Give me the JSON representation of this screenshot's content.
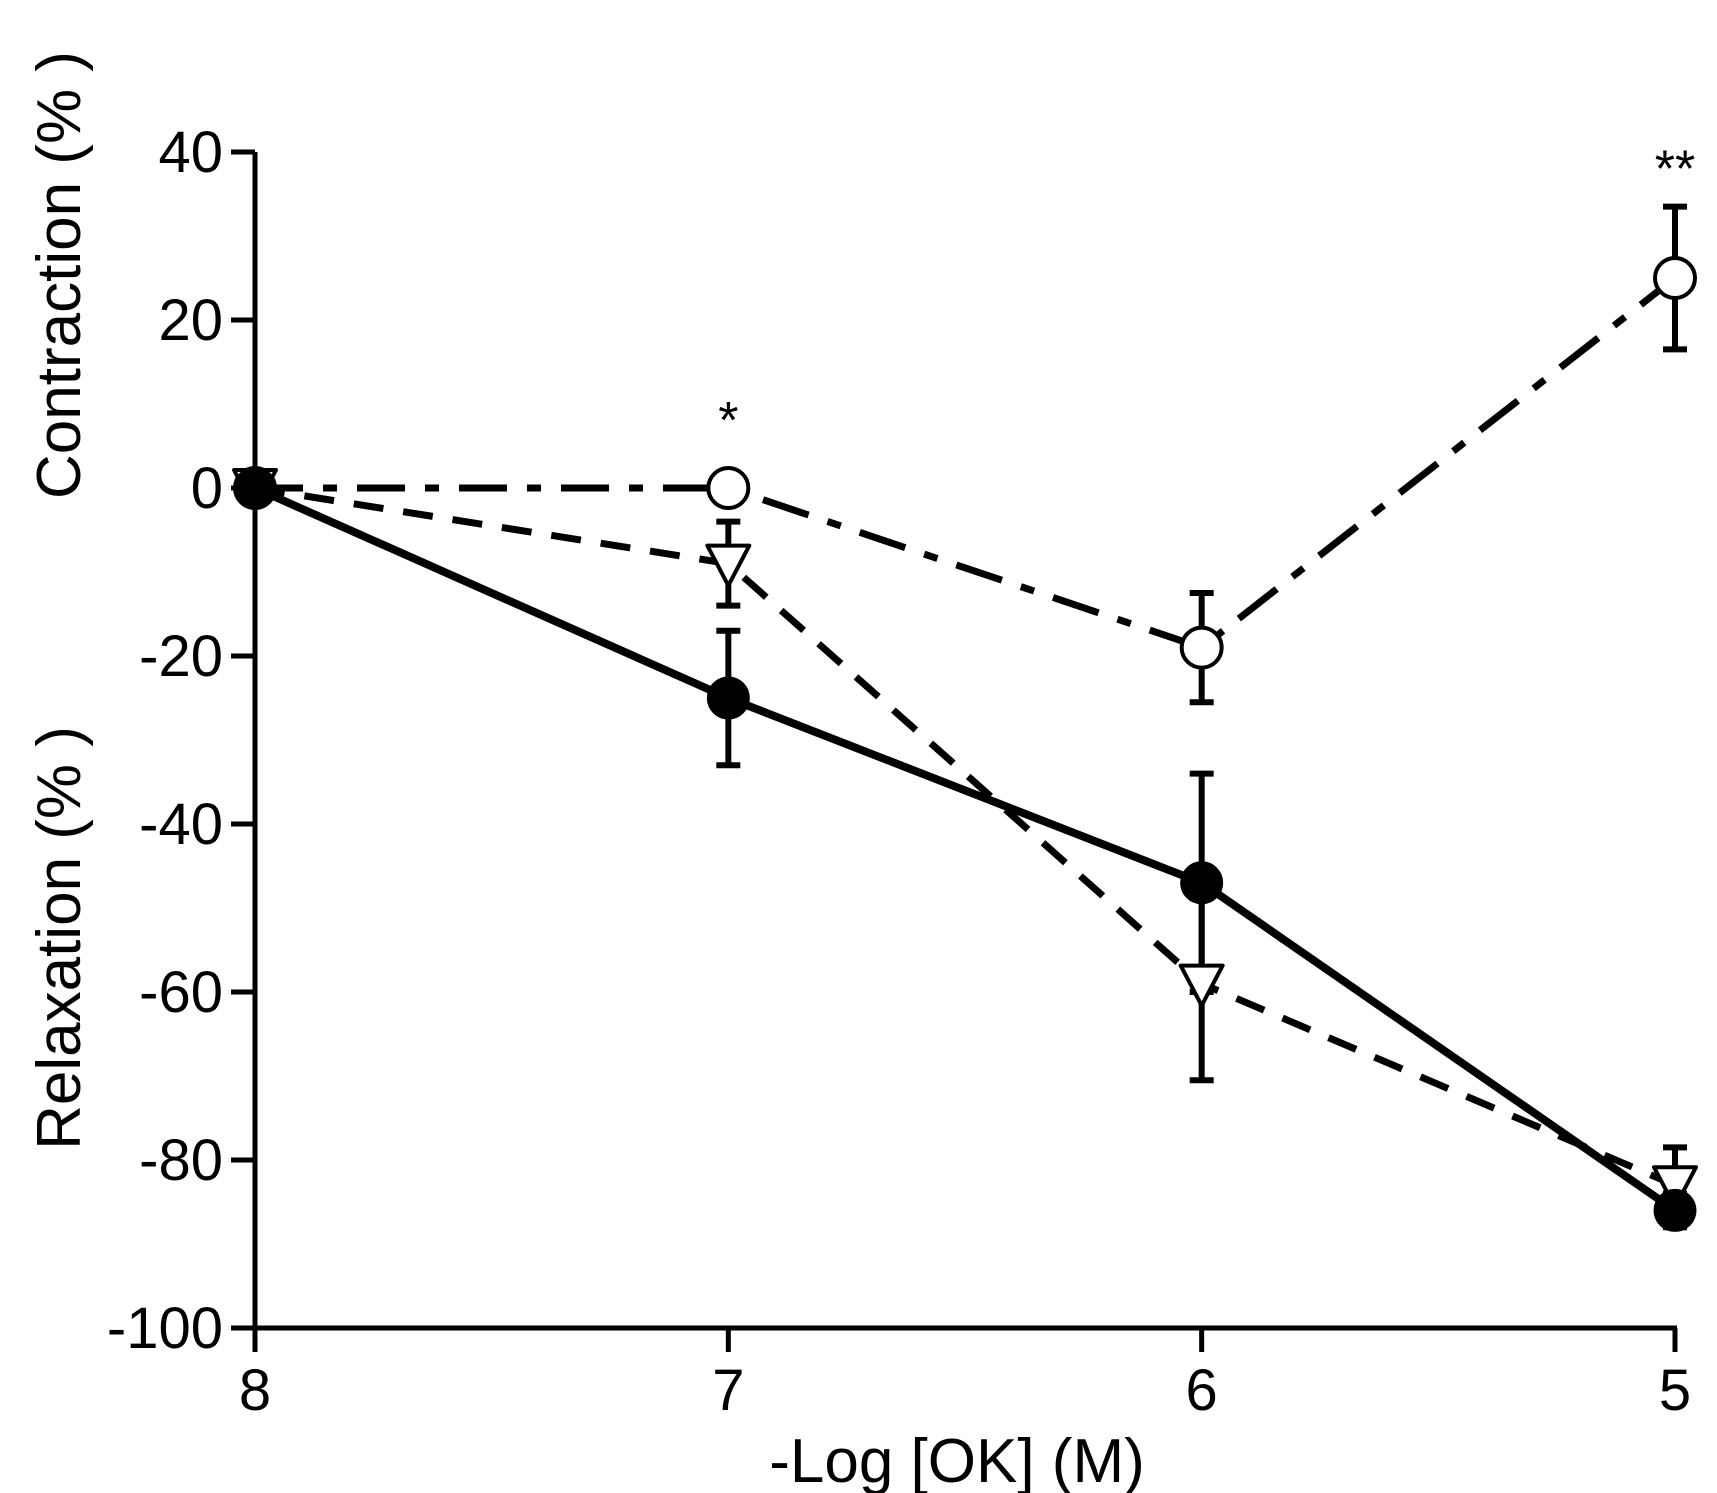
{
  "chart_data": {
    "type": "line",
    "title": "",
    "xlabel": "-Log [OK] (M)",
    "ylabel_top": "Contraction (% )",
    "ylabel_bottom": "Relaxation (% )",
    "x": [
      8,
      7,
      6,
      5
    ],
    "xticks": [
      8,
      7,
      6,
      5
    ],
    "xtick_labels": [
      "8",
      "7",
      "6",
      "5"
    ],
    "xlim": [
      8,
      5
    ],
    "ylim": [
      -100,
      40
    ],
    "yticks": [
      40,
      20,
      0,
      -20,
      -40,
      -60,
      -80,
      -100
    ],
    "ytick_labels": [
      "40",
      "20",
      "0",
      "-20",
      "-40",
      "-60",
      "-80",
      "-100"
    ],
    "grid": false,
    "series": [
      {
        "name": "filled-circle-solid",
        "marker": "circle-filled",
        "line": "solid",
        "values": [
          0,
          -25,
          -47,
          -86
        ],
        "errors": [
          0,
          8,
          13,
          2
        ]
      },
      {
        "name": "open-circle-dashdot",
        "marker": "circle-open",
        "line": "dashdot",
        "values": [
          0,
          0,
          -19,
          25
        ],
        "errors": [
          0,
          0,
          6.5,
          8.5
        ]
      },
      {
        "name": "open-triangle-dashed",
        "marker": "triangle-open",
        "line": "dashed",
        "values": [
          0,
          -9,
          -59,
          -83
        ],
        "errors": [
          0,
          5,
          11.5,
          4.5
        ]
      }
    ],
    "annotations": [
      {
        "x": 7,
        "y": 0,
        "text": "*"
      },
      {
        "x": 5,
        "y": 25,
        "text": "**"
      }
    ]
  }
}
